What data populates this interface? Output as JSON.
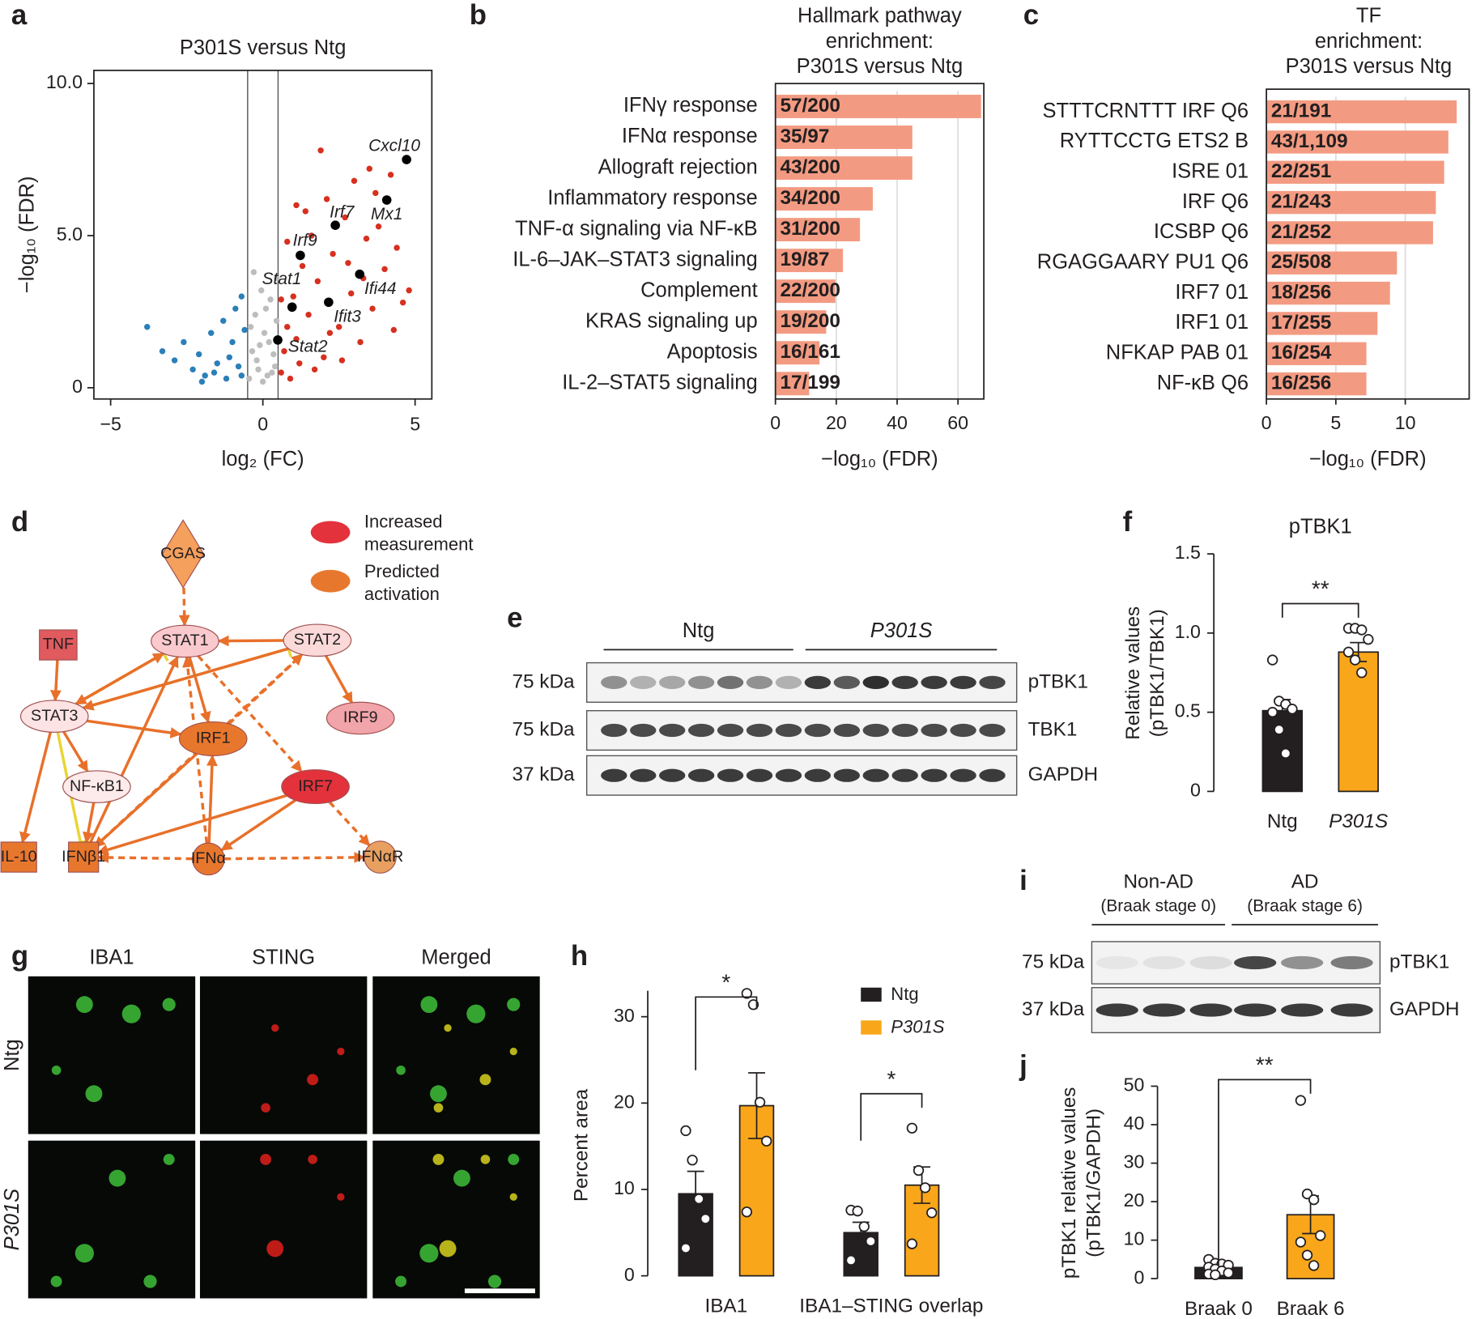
{
  "panel_letters": [
    "a",
    "b",
    "c",
    "d",
    "e",
    "f",
    "g",
    "h",
    "i",
    "j"
  ],
  "chart_data": [
    {
      "type": "scatter",
      "title": "P301S versus Ntg",
      "xlabel": "log₂ (FC)",
      "ylabel": "−log₁₀ (FDR)",
      "xlim": [
        -5.55,
        5.55
      ],
      "ylim": [
        -0.37,
        10.43
      ],
      "xticks": [
        {
          "value": -5,
          "label": "−5"
        },
        0,
        5
      ],
      "yticks": [
        0,
        {
          "value": 5,
          "label": "5.0"
        },
        {
          "value": 10,
          "label": "10.0"
        }
      ],
      "thresholds": [
        -0.5,
        0.5
      ],
      "series": [
        {
          "color": "#d7301f",
          "x": [
            0.6,
            0.7,
            0.8,
            0.9,
            1.0,
            1.1,
            1.2,
            1.3,
            1.5,
            1.6,
            1.8,
            2.0,
            2.1,
            2.3,
            2.5,
            2.7,
            2.9,
            3.0,
            3.2,
            3.4,
            3.6,
            3.8,
            4.0,
            4.2,
            4.4,
            4.6,
            1.4,
            1.9,
            2.6,
            3.3,
            0.8,
            1.1,
            2.2,
            3.7,
            4.8,
            0.6,
            1.7,
            2.8,
            3.5,
            4.3
          ],
          "y": [
            0.5,
            1.2,
            2.0,
            0.3,
            3.0,
            1.6,
            0.8,
            4.0,
            2.4,
            5.0,
            3.5,
            1.0,
            6.2,
            4.4,
            2.0,
            5.6,
            3.1,
            6.8,
            1.5,
            4.9,
            2.6,
            5.3,
            3.9,
            7.0,
            4.6,
            2.8,
            5.8,
            7.8,
            0.9,
            3.6,
            4.8,
            6.0,
            1.8,
            6.4,
            3.2,
            2.9,
            0.6,
            4.1,
            7.2,
            1.9
          ]
        },
        {
          "color": "#2c7fb8",
          "x": [
            -3.8,
            -3.3,
            -2.9,
            -2.6,
            -2.3,
            -2.1,
            -1.9,
            -1.7,
            -1.5,
            -1.3,
            -1.2,
            -1.0,
            -0.9,
            -0.8,
            -0.7,
            -0.6,
            -1.1,
            -1.6,
            -2.0,
            -0.7
          ],
          "y": [
            2.0,
            1.2,
            0.9,
            1.5,
            0.6,
            1.1,
            0.4,
            1.8,
            0.8,
            2.2,
            0.3,
            1.5,
            2.6,
            0.7,
            3.0,
            1.9,
            1.0,
            0.5,
            0.2,
            0.4
          ]
        },
        {
          "color": "#bdbdbd",
          "x": [
            -0.45,
            -0.35,
            -0.25,
            -0.15,
            -0.05,
            0.05,
            0.15,
            0.25,
            0.35,
            0.45,
            -0.4,
            -0.2,
            0.0,
            0.2,
            0.4,
            -0.3,
            0.1,
            0.3,
            -0.1,
            0.45
          ],
          "y": [
            0.3,
            1.2,
            2.4,
            0.6,
            3.2,
            1.8,
            0.4,
            2.9,
            1.1,
            3.6,
            2.0,
            0.9,
            0.2,
            1.5,
            0.7,
            3.8,
            2.6,
            0.5,
            1.4,
            2.2
          ]
        }
      ],
      "highlighted": {
        "color": "#000000",
        "labels": [
          "Cxcl10",
          "Mx1",
          "Irf7",
          "Irf9",
          "Ifi44",
          "Ifit3",
          "Stat1",
          "Stat2"
        ],
        "x": [
          4.72,
          4.07,
          2.38,
          1.23,
          3.18,
          2.16,
          0.96,
          0.49
        ],
        "y": [
          7.5,
          6.17,
          5.34,
          4.35,
          3.73,
          2.81,
          2.65,
          1.57
        ]
      }
    },
    {
      "type": "hbar",
      "title": [
        "Hallmark pathway",
        "enrichment:",
        "P301S versus Ntg"
      ],
      "categories": [
        "IFNγ response",
        "IFNα response",
        "Allograft rejection",
        "Inflammatory response",
        "TNF-α signaling via NF-κB",
        "IL-6–JAK–STAT3 signaling",
        "Complement",
        "KRAS signaling up",
        "Apoptosis",
        "IL-2–STAT5 signaling"
      ],
      "values": [
        67.6,
        45,
        45,
        32,
        27.8,
        22.2,
        19.7,
        16.7,
        14.5,
        11.1
      ],
      "counts": [
        "57/200",
        "35/97",
        "43/200",
        "34/200",
        "31/200",
        "19/87",
        "22/200",
        "19/200",
        "16/161",
        "17/199"
      ],
      "color": "#f39b82",
      "xlim": [
        0,
        68.5
      ],
      "xticks": [
        0,
        20,
        40,
        60
      ],
      "xlabel": "−log₁₀ (FDR)",
      "grid": true
    },
    {
      "type": "hbar",
      "title": [
        "TF",
        "enrichment:",
        "P301S versus Ntg"
      ],
      "categories": [
        "STTTCRNTTT IRF Q6",
        "RYTTCCTG ETS2 B",
        "ISRE 01",
        "IRF Q6",
        "ICSBP Q6",
        "RGAGGAARY PU1 Q6",
        "IRF7 01",
        "IRF1 01",
        "NFKAP PAB 01",
        "NF-κB Q6"
      ],
      "values": [
        13.7,
        13.1,
        12.8,
        12.2,
        12.0,
        9.4,
        8.9,
        8.0,
        7.2,
        7.2
      ],
      "counts": [
        "21/191",
        "43/1,109",
        "22/251",
        "21/243",
        "21/252",
        "25/508",
        "18/256",
        "17/255",
        "16/254",
        "16/256"
      ],
      "color": "#f39b82",
      "xlim": [
        0,
        14.6
      ],
      "xticks": [
        0,
        5,
        10
      ],
      "xlabel": "−log₁₀ (FDR)",
      "grid": true
    },
    {
      "type": "bar",
      "title": "pTBK1",
      "ylabel": [
        "Relative values",
        "(pTBK1/TBK1)"
      ],
      "categories": [
        "Ntg",
        "P301S"
      ],
      "colors": [
        "#231f20",
        "#f9a61a"
      ],
      "values": [
        0.51,
        0.88
      ],
      "errors": [
        0.07,
        0.06
      ],
      "points": [
        [
          0.83,
          0.57,
          0.55,
          0.52,
          0.5,
          0.39,
          0.24
        ],
        [
          1.03,
          1.03,
          1.02,
          0.96,
          0.88,
          0.83,
          0.75
        ]
      ],
      "ylim": [
        0,
        1.5
      ],
      "yticks": [
        0,
        0.5,
        {
          "value": 1,
          "label": "1.0"
        },
        1.5
      ],
      "significance": [
        "**"
      ]
    },
    {
      "type": "grouped_bar",
      "ylabel": "Percent area",
      "categories": [
        "IBA1",
        "IBA1–STING overlap"
      ],
      "series": [
        {
          "name": "Ntg",
          "color": "#231f20",
          "values": [
            9.5,
            5.0
          ],
          "errors": [
            2.6,
            1.2
          ],
          "points": [
            [
              16.8,
              13.4,
              8.9,
              6.6,
              3.2
            ],
            [
              7.6,
              7.5,
              5.7,
              4.0,
              1.8
            ]
          ]
        },
        {
          "name": "P301S",
          "color": "#f9a61a",
          "values": [
            19.7,
            10.5
          ],
          "errors": [
            3.8,
            2.1
          ],
          "points": [
            [
              32.7,
              31.4,
              20.1,
              15.6,
              7.4
            ],
            [
              17.1,
              12.2,
              10.2,
              7.3,
              3.7
            ]
          ]
        }
      ],
      "ylim": [
        0,
        33
      ],
      "yticks": [
        0,
        10,
        20,
        30
      ],
      "significance": [
        "*",
        "*"
      ],
      "legend": "upper right"
    },
    {
      "type": "bar",
      "ylabel": [
        "pTBK1 relative values",
        "(pTBK1/GAPDH)"
      ],
      "categories": [
        "Braak 0",
        "Braak 6"
      ],
      "colors": [
        "#231f20",
        "#f9a61a"
      ],
      "values": [
        2.9,
        16.6
      ],
      "errors": [
        0.5,
        4.9
      ],
      "points": [
        [
          5.0,
          4.0,
          3.8,
          3.5,
          3.0,
          2.5,
          2.0,
          1.5,
          1.2,
          1.0
        ],
        [
          46.3,
          22.0,
          20.5,
          11.2,
          9.5,
          6.1,
          3.4
        ]
      ],
      "ylim": [
        0,
        50
      ],
      "yticks": [
        0,
        10,
        20,
        30,
        40,
        50
      ],
      "significance": [
        "**"
      ]
    }
  ],
  "network": {
    "nodes": [
      "CGAS",
      "TNF",
      "STAT1",
      "STAT2",
      "STAT3",
      "IRF9",
      "IRF1",
      "IRF7",
      "NF-κB1",
      "IL-10",
      "IFNβ1",
      "IFNα",
      "IFNαR"
    ],
    "legend": [
      [
        "Increased",
        "measurement"
      ],
      [
        "Predicted",
        "activation"
      ]
    ]
  },
  "blot_e": {
    "groups": [
      "Ntg",
      "P301S"
    ],
    "markers": [
      "75 kDa",
      "75 kDa",
      "37 kDa"
    ],
    "bands": [
      "pTBK1",
      "TBK1",
      "GAPDH"
    ]
  },
  "micrographs": {
    "columns": [
      "IBA1",
      "STING",
      "Merged"
    ],
    "rows": [
      "Ntg",
      "P301S"
    ]
  },
  "blot_i": {
    "groups": [
      [
        "Non-AD",
        "(Braak stage 0)"
      ],
      [
        "AD",
        "(Braak stage 6)"
      ]
    ],
    "markers": [
      "75 kDa",
      "37 kDa"
    ],
    "bands": [
      "pTBK1",
      "GAPDH"
    ]
  }
}
